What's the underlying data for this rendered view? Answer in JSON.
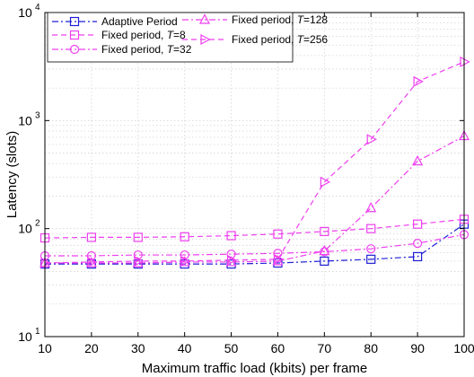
{
  "chart_data": {
    "type": "line",
    "title": "",
    "xlabel": "Maximum traffic load (kbits) per frame",
    "ylabel": "Latency (slots)",
    "x": [
      10,
      20,
      30,
      40,
      50,
      60,
      70,
      80,
      90,
      100
    ],
    "xlim": [
      10,
      100
    ],
    "ylim": [
      10,
      10000
    ],
    "yscale": "log",
    "grid": true,
    "legend_position": "top-left",
    "x_ticks": [
      "10",
      "20",
      "30",
      "40",
      "50",
      "60",
      "70",
      "80",
      "90",
      "100"
    ],
    "y_ticks": [
      {
        "base": "10",
        "exp": "1"
      },
      {
        "base": "10",
        "exp": "2"
      },
      {
        "base": "10",
        "exp": "3"
      },
      {
        "base": "10",
        "exp": "4"
      }
    ],
    "series": [
      {
        "name": "Adaptive Period",
        "legend_prefix": "Adaptive Period",
        "legend_param": "",
        "legend_value": "",
        "color": "#1f1fd6",
        "marker": "square",
        "dash": "dashdot",
        "values": [
          47,
          47,
          47,
          47,
          47,
          48,
          50,
          52,
          55,
          110
        ]
      },
      {
        "name": "Fixed period, T=8",
        "legend_prefix": "Fixed period, ",
        "legend_param": "T",
        "legend_value": "=8",
        "color": "#ee3fee",
        "marker": "square",
        "dash": "dashed",
        "values": [
          82,
          83,
          83,
          84,
          86,
          89,
          94,
          100,
          110,
          122
        ]
      },
      {
        "name": "Fixed period, T=32",
        "legend_prefix": "Fixed period, ",
        "legend_param": "T",
        "legend_value": "=32",
        "color": "#ee3fee",
        "marker": "circle",
        "dash": "dashdot",
        "values": [
          56,
          56,
          57,
          57,
          58,
          59,
          61,
          65,
          73,
          88
        ]
      },
      {
        "name": "Fixed period, T=128",
        "legend_prefix": "Fixed period, ",
        "legend_param": "T",
        "legend_value": "=128",
        "color": "#ee3fee",
        "marker": "triangle-up",
        "dash": "dashdot",
        "values": [
          48,
          48,
          48,
          49,
          49,
          50,
          62,
          155,
          420,
          720
        ]
      },
      {
        "name": "Fixed period, T=256",
        "legend_prefix": "Fixed period, ",
        "legend_param": "T",
        "legend_value": "=256",
        "color": "#ee3fee",
        "marker": "triangle-right",
        "dash": "dashed",
        "values": [
          48,
          49,
          50,
          50,
          51,
          52,
          270,
          670,
          2300,
          3500
        ]
      }
    ]
  }
}
